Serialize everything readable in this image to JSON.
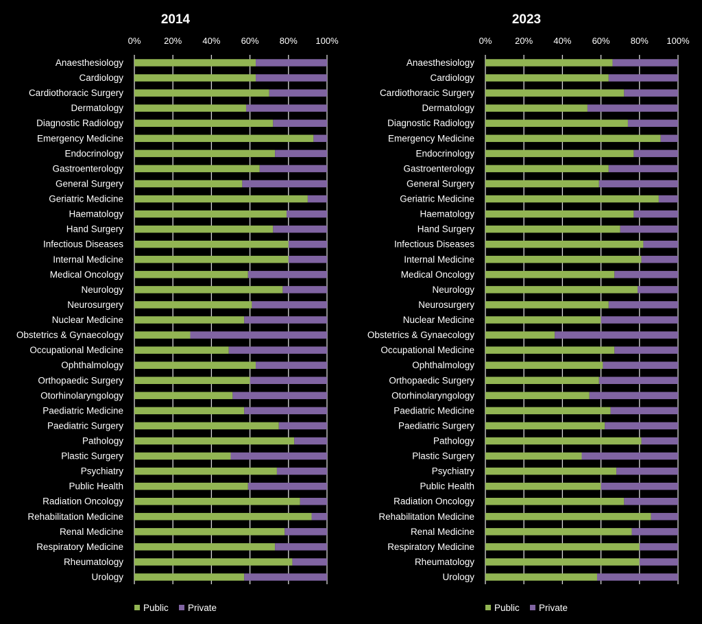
{
  "colors": {
    "public": "#92b553",
    "private": "#8064a2",
    "background": "#000000",
    "text": "#ffffff",
    "grid": "#d9d9d9"
  },
  "chart_data": [
    {
      "type": "bar",
      "orientation": "horizontal",
      "stacking": "percent",
      "title": "2014",
      "xticks": [
        "0%",
        "20%",
        "40%",
        "60%",
        "80%",
        "100%"
      ],
      "xlim": [
        0,
        100
      ],
      "grid": true,
      "legend_position": "bottom-left",
      "categories": [
        "Anaesthesiology",
        "Cardiology",
        "Cardiothoracic Surgery",
        "Dermatology",
        "Diagnostic Radiology",
        "Emergency Medicine",
        "Endocrinology",
        "Gastroenterology",
        "General Surgery",
        "Geriatric Medicine",
        "Haematology",
        "Hand Surgery",
        "Infectious Diseases",
        "Internal Medicine",
        "Medical Oncology",
        "Neurology",
        "Neurosurgery",
        "Nuclear Medicine",
        "Obstetrics & Gynaecology",
        "Occupational Medicine",
        "Ophthalmology",
        "Orthopaedic Surgery",
        "Otorhinolaryngology",
        "Paediatric Medicine",
        "Paediatric Surgery",
        "Pathology",
        "Plastic Surgery",
        "Psychiatry",
        "Public Health",
        "Radiation Oncology",
        "Rehabilitation Medicine",
        "Renal Medicine",
        "Respiratory Medicine",
        "Rheumatology",
        "Urology"
      ],
      "series": [
        {
          "name": "Public",
          "values": [
            63,
            63,
            70,
            58,
            72,
            93,
            73,
            65,
            56,
            90,
            79,
            72,
            80,
            80,
            59,
            77,
            61,
            57,
            29,
            49,
            63,
            60,
            51,
            57,
            75,
            83,
            50,
            74,
            59,
            86,
            92,
            78,
            73,
            82,
            57
          ]
        },
        {
          "name": "Private",
          "values": [
            37,
            37,
            30,
            42,
            28,
            7,
            27,
            35,
            44,
            10,
            21,
            28,
            20,
            20,
            41,
            23,
            39,
            43,
            71,
            51,
            37,
            40,
            49,
            43,
            25,
            17,
            50,
            26,
            41,
            14,
            8,
            22,
            27,
            18,
            43
          ]
        }
      ]
    },
    {
      "type": "bar",
      "orientation": "horizontal",
      "stacking": "percent",
      "title": "2023",
      "xticks": [
        "0%",
        "20%",
        "40%",
        "60%",
        "80%",
        "100%"
      ],
      "xlim": [
        0,
        100
      ],
      "grid": true,
      "legend_position": "bottom-left",
      "categories": [
        "Anaesthesiology",
        "Cardiology",
        "Cardiothoracic Surgery",
        "Dermatology",
        "Diagnostic Radiology",
        "Emergency Medicine",
        "Endocrinology",
        "Gastroenterology",
        "General Surgery",
        "Geriatric Medicine",
        "Haematology",
        "Hand Surgery",
        "Infectious Diseases",
        "Internal Medicine",
        "Medical Oncology",
        "Neurology",
        "Neurosurgery",
        "Nuclear Medicine",
        "Obstetrics & Gynaecology",
        "Occupational Medicine",
        "Ophthalmology",
        "Orthopaedic Surgery",
        "Otorhinolaryngology",
        "Paediatric Medicine",
        "Paediatric Surgery",
        "Pathology",
        "Plastic Surgery",
        "Psychiatry",
        "Public Health",
        "Radiation Oncology",
        "Rehabilitation Medicine",
        "Renal Medicine",
        "Respiratory Medicine",
        "Rheumatology",
        "Urology"
      ],
      "series": [
        {
          "name": "Public",
          "values": [
            66,
            64,
            72,
            53,
            74,
            91,
            77,
            64,
            59,
            90,
            77,
            70,
            82,
            81,
            67,
            79,
            64,
            60,
            36,
            67,
            61,
            59,
            54,
            65,
            62,
            81,
            50,
            68,
            60,
            72,
            86,
            76,
            80,
            80,
            58
          ]
        },
        {
          "name": "Private",
          "values": [
            34,
            36,
            28,
            47,
            26,
            9,
            23,
            36,
            41,
            10,
            23,
            30,
            18,
            19,
            33,
            21,
            36,
            40,
            64,
            33,
            39,
            41,
            46,
            35,
            38,
            19,
            50,
            32,
            40,
            28,
            14,
            24,
            20,
            20,
            42
          ]
        }
      ]
    }
  ]
}
